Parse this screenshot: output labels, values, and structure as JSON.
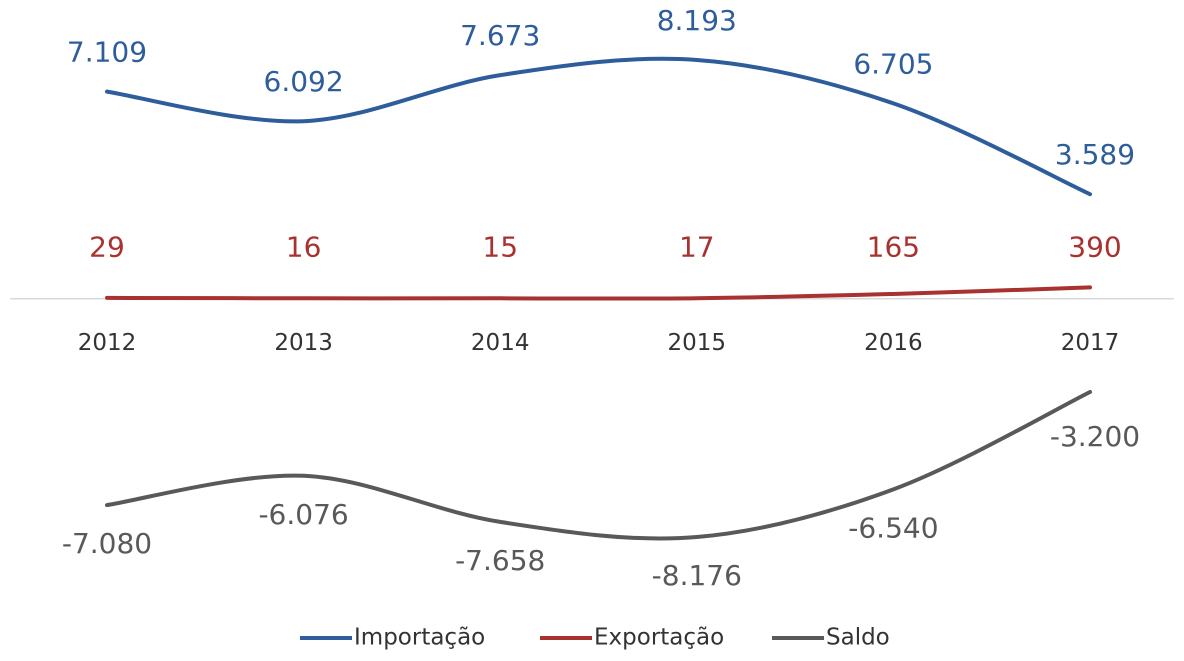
{
  "chart_data": {
    "type": "line",
    "categories": [
      "2012",
      "2013",
      "2014",
      "2015",
      "2016",
      "2017"
    ],
    "series": [
      {
        "name": "Importação",
        "color": "#2e5d9c",
        "values": [
          7109,
          6092,
          7673,
          8193,
          6705,
          3589
        ],
        "value_labels": [
          "7.109",
          "6.092",
          "7.673",
          "8.193",
          "6.705",
          "3.589"
        ]
      },
      {
        "name": "Exportação",
        "color": "#a8322f",
        "values": [
          29,
          16,
          15,
          17,
          165,
          390
        ]
      },
      {
        "name": "Saldo",
        "color": "#595959",
        "values": [
          -7080,
          -6076,
          -7658,
          -8176,
          -6540,
          -3200
        ],
        "value_labels": [
          "-7.080",
          "-6.076",
          "-7.658",
          "-8.176",
          "-6.540",
          "-3.200"
        ]
      }
    ],
    "legend": "bottom"
  }
}
